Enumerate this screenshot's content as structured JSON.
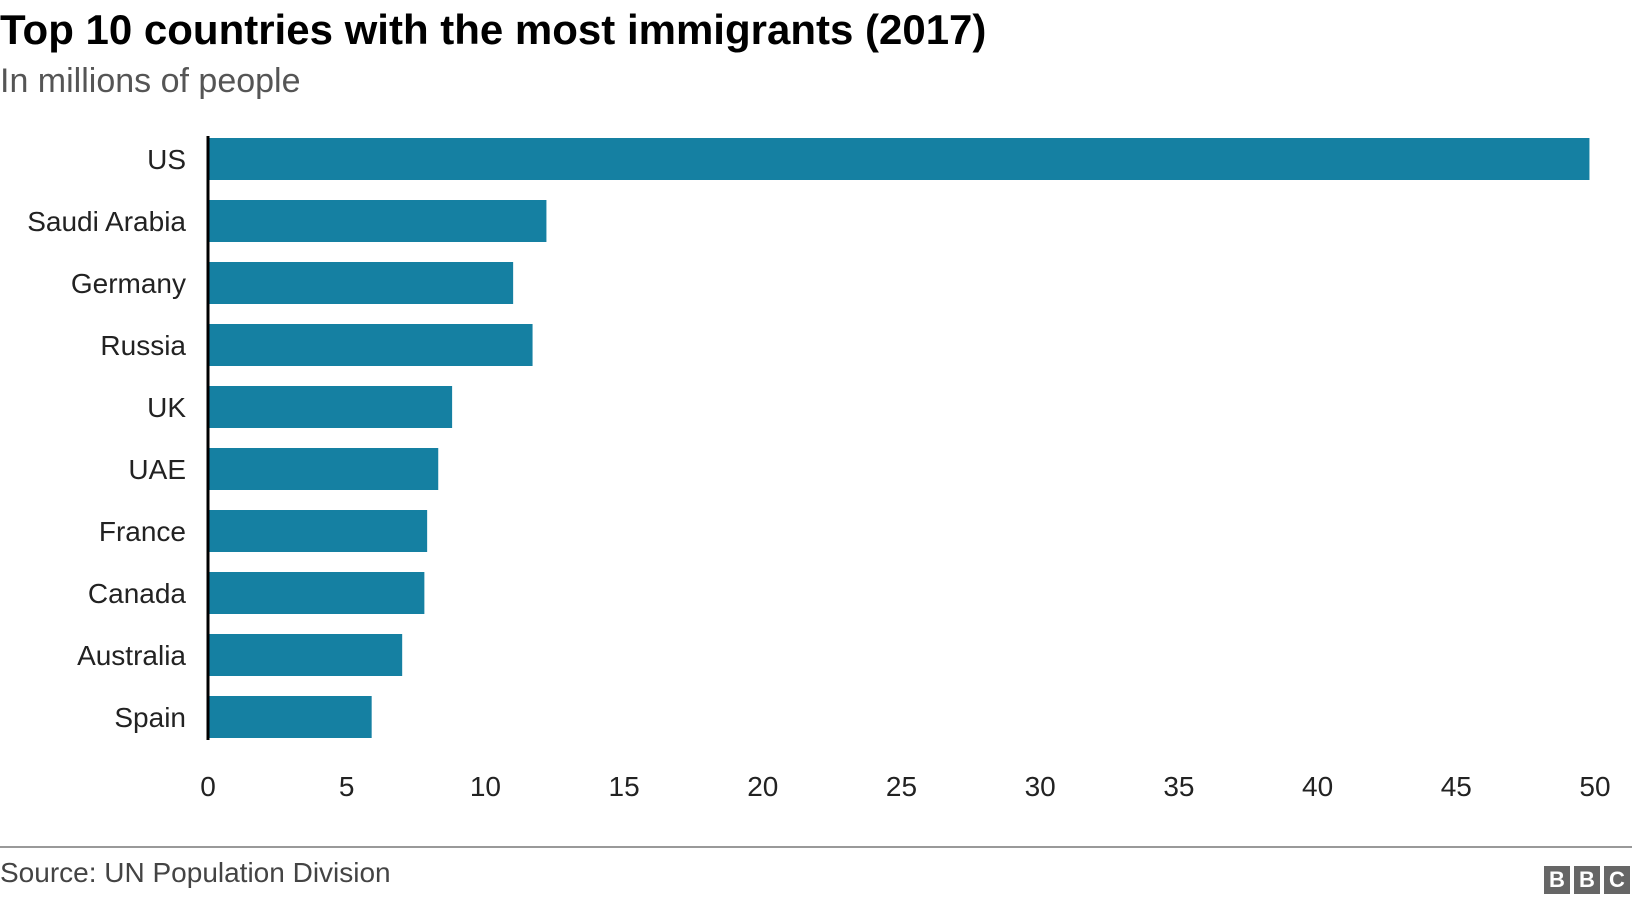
{
  "header": {
    "title": "Top 10 countries with the most immigrants (2017)",
    "subtitle": "In millions of people"
  },
  "footer": {
    "source": "Source: UN Population Division",
    "logo_letters": [
      "B",
      "B",
      "C"
    ]
  },
  "colors": {
    "bar": "#1580a2",
    "axis": "#000000",
    "text": "#222222"
  },
  "chart_data": {
    "type": "bar",
    "orientation": "horizontal",
    "title": "Top 10 countries with the most immigrants (2017)",
    "subtitle": "In millions of people",
    "categories": [
      "US",
      "Saudi Arabia",
      "Germany",
      "Russia",
      "UK",
      "UAE",
      "France",
      "Canada",
      "Australia",
      "Spain"
    ],
    "values": [
      49.8,
      12.2,
      11.0,
      11.7,
      8.8,
      8.3,
      7.9,
      7.8,
      7.0,
      5.9
    ],
    "xticks": [
      0,
      5,
      10,
      15,
      20,
      25,
      30,
      35,
      40,
      45,
      50
    ],
    "xlim": [
      0,
      50
    ],
    "xlabel": "",
    "ylabel": "",
    "grid": false,
    "legend": "none"
  }
}
